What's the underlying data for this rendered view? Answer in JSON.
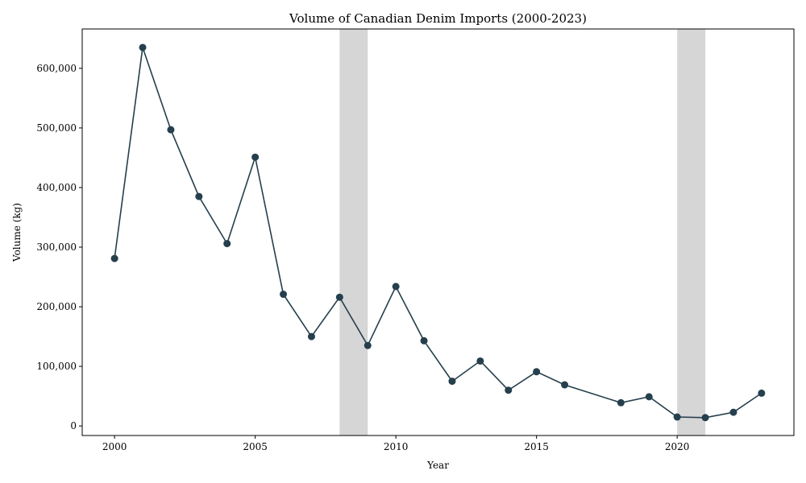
{
  "chart_data": {
    "type": "line",
    "title": "Volume of Canadian Denim Imports (2000-2023)",
    "xlabel": "Year",
    "ylabel": "Volume (kg)",
    "xlim": [
      1998.85,
      2024.15
    ],
    "ylim": [
      -16000,
      666000
    ],
    "x_ticks": [
      2000,
      2005,
      2010,
      2015,
      2020
    ],
    "y_ticks": [
      0,
      100000,
      200000,
      300000,
      400000,
      500000,
      600000
    ],
    "y_tick_labels": [
      "0",
      "100,000",
      "200,000",
      "300,000",
      "400,000",
      "500,000",
      "600,000"
    ],
    "x_tick_labels": [
      "2000",
      "2005",
      "2010",
      "2015",
      "2020"
    ],
    "grid": false,
    "line_color": "#253f4d",
    "shade_color": "#d6d6d6",
    "shaded_periods": [
      [
        2008,
        2009
      ],
      [
        2020,
        2021
      ]
    ],
    "series": [
      {
        "x": [
          2000,
          2001,
          2002,
          2003,
          2004,
          2005,
          2006,
          2007,
          2008,
          2009,
          2010,
          2011,
          2012,
          2013,
          2014,
          2015,
          2016,
          2018,
          2019,
          2020,
          2021,
          2022,
          2023
        ],
        "values": [
          281000,
          635000,
          497000,
          385000,
          306000,
          451000,
          221000,
          150000,
          216000,
          135000,
          234000,
          143000,
          75000,
          109000,
          60000,
          91000,
          69000,
          39000,
          49000,
          15000,
          14000,
          23000,
          55000
        ]
      }
    ]
  }
}
